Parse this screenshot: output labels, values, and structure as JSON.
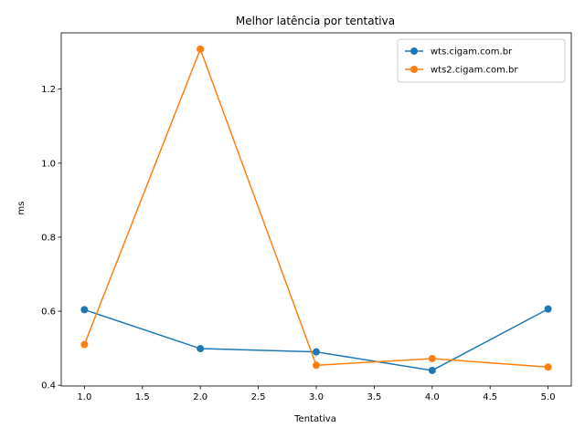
{
  "chart_data": {
    "type": "line",
    "title": "Melhor latência por tentativa",
    "xlabel": "Tentativa",
    "ylabel": "ms",
    "xlim": [
      0.8,
      5.2
    ],
    "ylim": [
      0.398,
      1.352
    ],
    "x_ticks": [
      1.0,
      1.5,
      2.0,
      2.5,
      3.0,
      3.5,
      4.0,
      4.5,
      5.0
    ],
    "x_tick_labels": [
      "1.0",
      "1.5",
      "2.0",
      "2.5",
      "3.0",
      "3.5",
      "4.0",
      "4.5",
      "5.0"
    ],
    "y_ticks": [
      0.4,
      0.6,
      0.8,
      1.0,
      1.2
    ],
    "y_tick_labels": [
      "0.4",
      "0.6",
      "0.8",
      "1.0",
      "1.2"
    ],
    "grid": false,
    "legend_position": "top-right",
    "series": [
      {
        "name": "wts.cigam.com.br",
        "color": "#1f77b4",
        "x": [
          1,
          2,
          3,
          4,
          5
        ],
        "values": [
          0.604,
          0.499,
          0.49,
          0.44,
          0.606
        ]
      },
      {
        "name": "wts2.cigam.com.br",
        "color": "#ff7f0e",
        "x": [
          1,
          2,
          3,
          4,
          5
        ],
        "values": [
          0.51,
          1.308,
          0.454,
          0.472,
          0.449
        ]
      }
    ]
  }
}
